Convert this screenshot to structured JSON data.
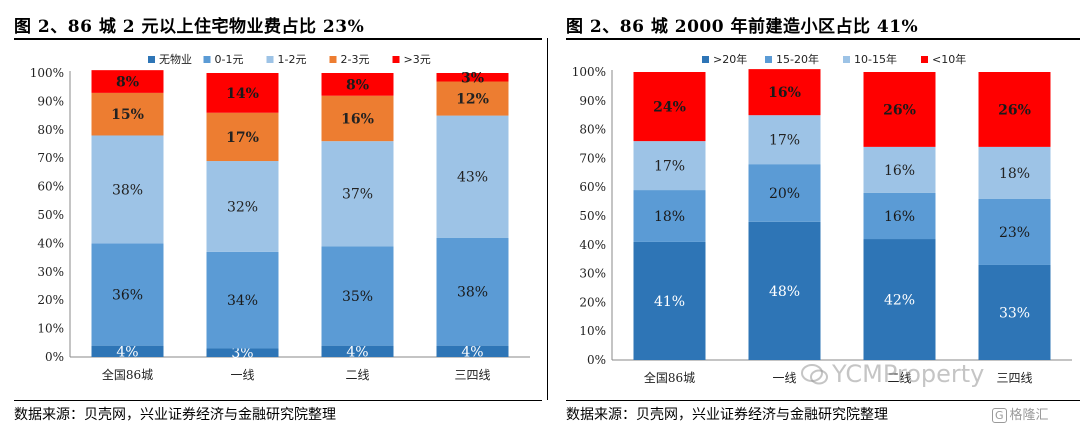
{
  "left": {
    "title": "图 2、86 城 2 元以上住宅物业费占比 23%",
    "source": "数据来源：贝壳网，兴业证券经济与金融研究院整理"
  },
  "right": {
    "title": "图 2、86 城 2000 年前建造小区占比 41%",
    "source": "数据来源：贝壳网，兴业证券经济与金融研究院整理",
    "watermark": "YCMProperty",
    "logo": "格隆汇"
  },
  "chart_data": [
    {
      "type": "bar",
      "stacked": true,
      "title": "图 2、86 城 2 元以上住宅物业费占比 23%",
      "categories": [
        "全国86城",
        "一线",
        "二线",
        "三四线"
      ],
      "ylim": [
        0,
        100
      ],
      "yticks": [
        "0%",
        "10%",
        "20%",
        "30%",
        "40%",
        "50%",
        "60%",
        "70%",
        "80%",
        "90%",
        "100%"
      ],
      "legend_position": "top",
      "series": [
        {
          "name": "无物业",
          "color": "#2e75b6",
          "values": [
            4,
            3,
            4,
            4
          ]
        },
        {
          "name": "0-1元",
          "color": "#5b9bd5",
          "values": [
            36,
            34,
            35,
            38
          ]
        },
        {
          "name": "1-2元",
          "color": "#9dc3e6",
          "values": [
            38,
            32,
            37,
            43
          ]
        },
        {
          "name": "2-3元",
          "color": "#ed7d31",
          "values": [
            15,
            17,
            16,
            12
          ]
        },
        {
          "name": ">3元",
          "color": "#ff0000",
          "values": [
            8,
            14,
            8,
            3
          ]
        }
      ]
    },
    {
      "type": "bar",
      "stacked": true,
      "title": "图 2、86 城 2000 年前建造小区占比 41%",
      "categories": [
        "全国86城",
        "一线",
        "二线",
        "三四线"
      ],
      "ylim": [
        0,
        100
      ],
      "yticks": [
        "0%",
        "10%",
        "20%",
        "30%",
        "40%",
        "50%",
        "60%",
        "70%",
        "80%",
        "90%",
        "100%"
      ],
      "legend_position": "top",
      "series": [
        {
          "name": ">20年",
          "color": "#2e75b6",
          "values": [
            41,
            48,
            42,
            33
          ]
        },
        {
          "name": "15-20年",
          "color": "#5b9bd5",
          "values": [
            18,
            20,
            16,
            23
          ]
        },
        {
          "name": "10-15年",
          "color": "#9dc3e6",
          "values": [
            17,
            17,
            16,
            18
          ]
        },
        {
          "name": "<10年",
          "color": "#ff0000",
          "values": [
            24,
            16,
            26,
            26
          ]
        }
      ]
    }
  ]
}
